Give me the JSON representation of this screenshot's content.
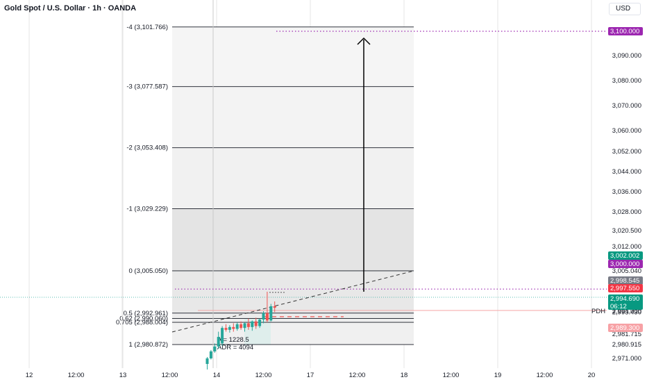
{
  "header": {
    "title": "Gold Spot / U.S. Dollar · 1h · OANDA",
    "currency": "USD"
  },
  "colors": {
    "up": "#26a69a",
    "down": "#ef5350",
    "purple": "#9c27b0",
    "teal_tag": "#089981",
    "red_tag": "#f23645",
    "pink_tag": "#f7a1a5",
    "grid": "#e6e6e6",
    "fib_line": "#131722"
  },
  "chart_data": {
    "type": "candlestick",
    "symbol": "XAUUSD",
    "timeframe": "1h",
    "x_ticks": [
      {
        "label": "12",
        "pos": 0.0
      },
      {
        "label": "12:00",
        "pos": 0.5
      },
      {
        "label": "13",
        "pos": 1.0
      },
      {
        "label": "12:00",
        "pos": 1.5
      },
      {
        "label": "14",
        "pos": 2.0
      },
      {
        "label": "12:00",
        "pos": 2.5
      },
      {
        "label": "17",
        "pos": 3.0
      },
      {
        "label": "12:00",
        "pos": 3.5
      },
      {
        "label": "18",
        "pos": 4.0
      },
      {
        "label": "12:00",
        "pos": 4.5
      },
      {
        "label": "19",
        "pos": 5.0
      },
      {
        "label": "12:00",
        "pos": 5.5
      },
      {
        "label": "20",
        "pos": 6.0
      }
    ],
    "y_ticks": [
      {
        "label": "3,090.000",
        "value": 3090.0
      },
      {
        "label": "3,080.000",
        "value": 3080.0
      },
      {
        "label": "3,070.000",
        "value": 3070.0
      },
      {
        "label": "3,060.000",
        "value": 3060.0
      },
      {
        "label": "3,052.000",
        "value": 3052.0
      },
      {
        "label": "3,044.000",
        "value": 3044.0
      },
      {
        "label": "3,036.000",
        "value": 3036.0
      },
      {
        "label": "3,028.000",
        "value": 3028.0
      },
      {
        "label": "3,020.500",
        "value": 3020.5
      },
      {
        "label": "3,012.000",
        "value": 3012.0
      },
      {
        "label": "3,005.040",
        "value": 3005.04
      },
      {
        "label": "2,999.715",
        "value": 2999.715
      },
      {
        "label": "2,994.000",
        "value": 2994.0
      },
      {
        "label": "2,993.430",
        "value": 2993.43
      },
      {
        "label": "2,981.715",
        "value": 2981.715
      },
      {
        "label": "2,980.915",
        "value": 2980.915
      },
      {
        "label": "2,971.000",
        "value": 2971.0
      }
    ],
    "price_tags": [
      {
        "label": "3,100.000",
        "value": 3100.0,
        "style": "purple"
      },
      {
        "label": "3,002.002",
        "value": 3002.002,
        "style": "teal"
      },
      {
        "label": "3,000.000",
        "value": 3000.0,
        "style": "purple"
      },
      {
        "label": "2,998.545",
        "value": 2998.545,
        "style": "gray"
      },
      {
        "label": "2,997.550",
        "value": 2997.55,
        "style": "red"
      },
      {
        "label": "2,994.690",
        "value": 2994.69,
        "style": "teal",
        "sub": "06:12"
      },
      {
        "label": "2,989.300",
        "value": 2989.3,
        "style": "pink"
      }
    ],
    "fib_levels": [
      {
        "label": "-4 (3,101.766)",
        "value": 3101.766
      },
      {
        "label": "-3 (3,077.587)",
        "value": 3077.587
      },
      {
        "label": "-2 (3,053.408)",
        "value": 3053.408
      },
      {
        "label": "-1 (3,029.229)",
        "value": 3029.229
      },
      {
        "label": "0 (3,005.050)",
        "value": 3005.05
      },
      {
        "label": "0.5 (2,992.961)",
        "value": 2992.961
      },
      {
        "label": "0.62 (2,990.060)",
        "value": 2990.06
      },
      {
        "label": "0.705 (2,988.004)",
        "value": 2988.004
      },
      {
        "label": "1 (2,980.872)",
        "value": 2980.872
      }
    ],
    "annotations": {
      "pdh_label": "PDH",
      "pdh_value": 2987.9,
      "range_label": "A = 1228.5",
      "adr_label": "ADR = 4094",
      "target_line_value": 3100.0,
      "resistance_line_value": 2998.545
    },
    "candles": [
      {
        "t": 1.9,
        "o": 2968.5,
        "h": 2972.0,
        "l": 2966.0,
        "c": 2971.0
      },
      {
        "t": 1.94,
        "o": 2971.0,
        "h": 2977.0,
        "l": 2970.5,
        "c": 2976.0
      },
      {
        "t": 1.98,
        "o": 2976.0,
        "h": 2981.0,
        "l": 2975.0,
        "c": 2979.5
      },
      {
        "t": 2.02,
        "o": 2979.5,
        "h": 2983.0,
        "l": 2978.0,
        "c": 2981.5
      },
      {
        "t": 2.06,
        "o": 2981.0,
        "h": 2986.0,
        "l": 2980.0,
        "c": 2985.0
      },
      {
        "t": 2.1,
        "o": 2985.0,
        "h": 2987.0,
        "l": 2983.0,
        "c": 2984.0
      },
      {
        "t": 2.14,
        "o": 2984.0,
        "h": 2986.5,
        "l": 2982.5,
        "c": 2985.5
      },
      {
        "t": 2.18,
        "o": 2985.5,
        "h": 2987.5,
        "l": 2983.0,
        "c": 2984.5
      },
      {
        "t": 2.22,
        "o": 2984.5,
        "h": 2988.0,
        "l": 2983.5,
        "c": 2987.0
      },
      {
        "t": 2.26,
        "o": 2987.0,
        "h": 2988.5,
        "l": 2984.0,
        "c": 2985.0
      },
      {
        "t": 2.3,
        "o": 2985.0,
        "h": 2988.0,
        "l": 2983.0,
        "c": 2987.5
      },
      {
        "t": 2.34,
        "o": 2987.5,
        "h": 2990.0,
        "l": 2984.0,
        "c": 2985.5
      },
      {
        "t": 2.38,
        "o": 2985.5,
        "h": 2989.0,
        "l": 2983.5,
        "c": 2988.5
      },
      {
        "t": 2.42,
        "o": 2988.5,
        "h": 2990.5,
        "l": 2984.5,
        "c": 2986.0
      },
      {
        "t": 2.46,
        "o": 2986.0,
        "h": 2990.0,
        "l": 2985.0,
        "c": 2989.5
      },
      {
        "t": 2.5,
        "o": 2989.5,
        "h": 2994.0,
        "l": 2987.5,
        "c": 2993.0
      },
      {
        "t": 2.54,
        "o": 2993.0,
        "h": 2998.0,
        "l": 2988.0,
        "c": 2989.0
      },
      {
        "t": 2.58,
        "o": 2989.0,
        "h": 2995.5,
        "l": 2988.5,
        "c": 2995.0
      },
      {
        "t": 2.62,
        "o": 2995.0,
        "h": 2996.0,
        "l": 2993.5,
        "c": 2994.7
      }
    ]
  }
}
